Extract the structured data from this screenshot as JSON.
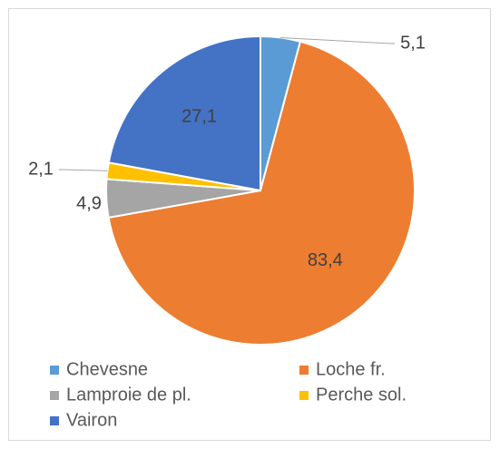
{
  "chart_data": {
    "type": "pie",
    "categories": [
      "Chevesne",
      "Loche fr.",
      "Lamproie de pl.",
      "Perche sol.",
      "Vairon"
    ],
    "values": [
      5.1,
      83.4,
      4.9,
      2.1,
      27.1
    ],
    "value_labels": [
      "5,1",
      "83,4",
      "4,9",
      "2,1",
      "27,1"
    ],
    "colors": [
      "#5b9bd5",
      "#ed7d31",
      "#a5a5a5",
      "#ffc000",
      "#4472c4"
    ],
    "legend": "bottom"
  }
}
